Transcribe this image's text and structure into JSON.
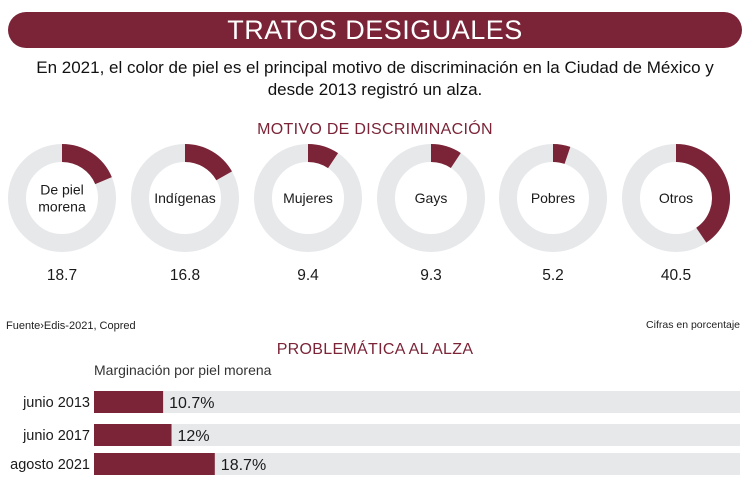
{
  "header": {
    "title": "TRATOS DESIGUALES",
    "subtitle_line1": "En 2021, el color de piel es el principal motivo de discriminación en la Ciudad de México y",
    "subtitle_line2": "desde 2013 registró un alza."
  },
  "colors": {
    "accent": "#7b2437",
    "track": "#e6e8ea"
  },
  "footer": {
    "source": "Fuente›Edis-2021, Copred",
    "unit_note": "Cifras en porcentaje"
  },
  "chart_data": [
    {
      "type": "pie",
      "title": "MOTIVO DE DISCRIMINACIÓN",
      "unit": "%",
      "categories": [
        "De piel morena",
        "Indígenas",
        "Mujeres",
        "Gays",
        "Pobres",
        "Otros"
      ],
      "label_lines": [
        [
          "De piel",
          "morena"
        ],
        [
          "Indígenas"
        ],
        [
          "Mujeres"
        ],
        [
          "Gays"
        ],
        [
          "Pobres"
        ],
        [
          "Otros"
        ]
      ],
      "values": [
        18.7,
        16.8,
        9.4,
        9.3,
        5.2,
        40.5
      ],
      "value_labels": [
        "18.7",
        "16.8",
        "9.4",
        "9.3",
        "5.2",
        "40.5"
      ]
    },
    {
      "type": "bar",
      "orientation": "horizontal",
      "title": "PROBLEMÁTICA AL ALZA",
      "series_name": "Marginación por piel morena",
      "categories": [
        "junio 2013",
        "junio 2017",
        "agosto 2021"
      ],
      "values": [
        10.7,
        12,
        18.7
      ],
      "value_labels": [
        "10.7%",
        "12%",
        "18.7%"
      ],
      "xlim": [
        0,
        100
      ]
    }
  ]
}
